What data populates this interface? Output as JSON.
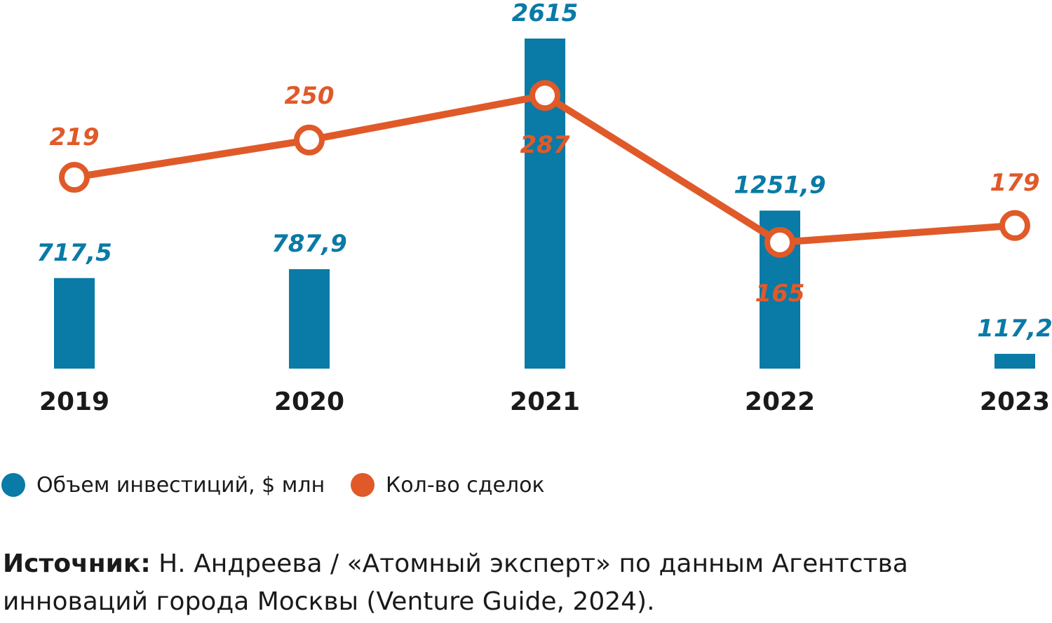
{
  "chart_data": {
    "type": "bar",
    "categories": [
      "2019",
      "2020",
      "2021",
      "2022",
      "2023"
    ],
    "series": [
      {
        "name": "Объем инвестиций, $ млн",
        "type": "bar",
        "values": [
          717.5,
          787.9,
          2615,
          1251.9,
          117.2
        ],
        "labels": [
          "717,5",
          "787,9",
          "2615",
          "1251,9",
          "117,2"
        ],
        "color": "#0a7aa6"
      },
      {
        "name": "Кол-во сделок",
        "type": "line",
        "values": [
          219,
          250,
          287,
          165,
          179
        ],
        "labels": [
          "219",
          "250",
          "287",
          "165",
          "179"
        ],
        "color": "#e05a29"
      }
    ],
    "title": "",
    "xlabel": "",
    "ylabel": "",
    "grid": false,
    "legend_position": "bottom-left"
  },
  "legend": {
    "items": [
      {
        "label": "Объем инвестиций, $ млн",
        "color": "#0a7aa6"
      },
      {
        "label": "Кол-во сделок",
        "color": "#e05a29"
      }
    ]
  },
  "source": {
    "label": "Источник:",
    "text": " Н. Андреева / «Атомный эксперт» по данным Агентства инноваций города Москвы (Venture Guide, 2024)."
  }
}
